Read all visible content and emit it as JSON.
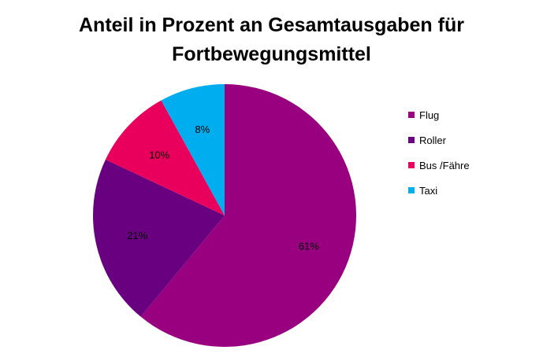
{
  "chart_data": {
    "type": "pie",
    "title": [
      "Anteil in Prozent an Gesamtausgaben für",
      "Fortbewegungsmittel"
    ],
    "categories": [
      "Flug",
      "Roller",
      "Bus /Fähre",
      "Taxi"
    ],
    "values": [
      61,
      21,
      10,
      8
    ],
    "labels": [
      "61%",
      "21%",
      "10%",
      "8%"
    ],
    "colors": [
      "#990080",
      "#68007F",
      "#E8005C",
      "#00AEEF"
    ],
    "legend_position": "right"
  }
}
